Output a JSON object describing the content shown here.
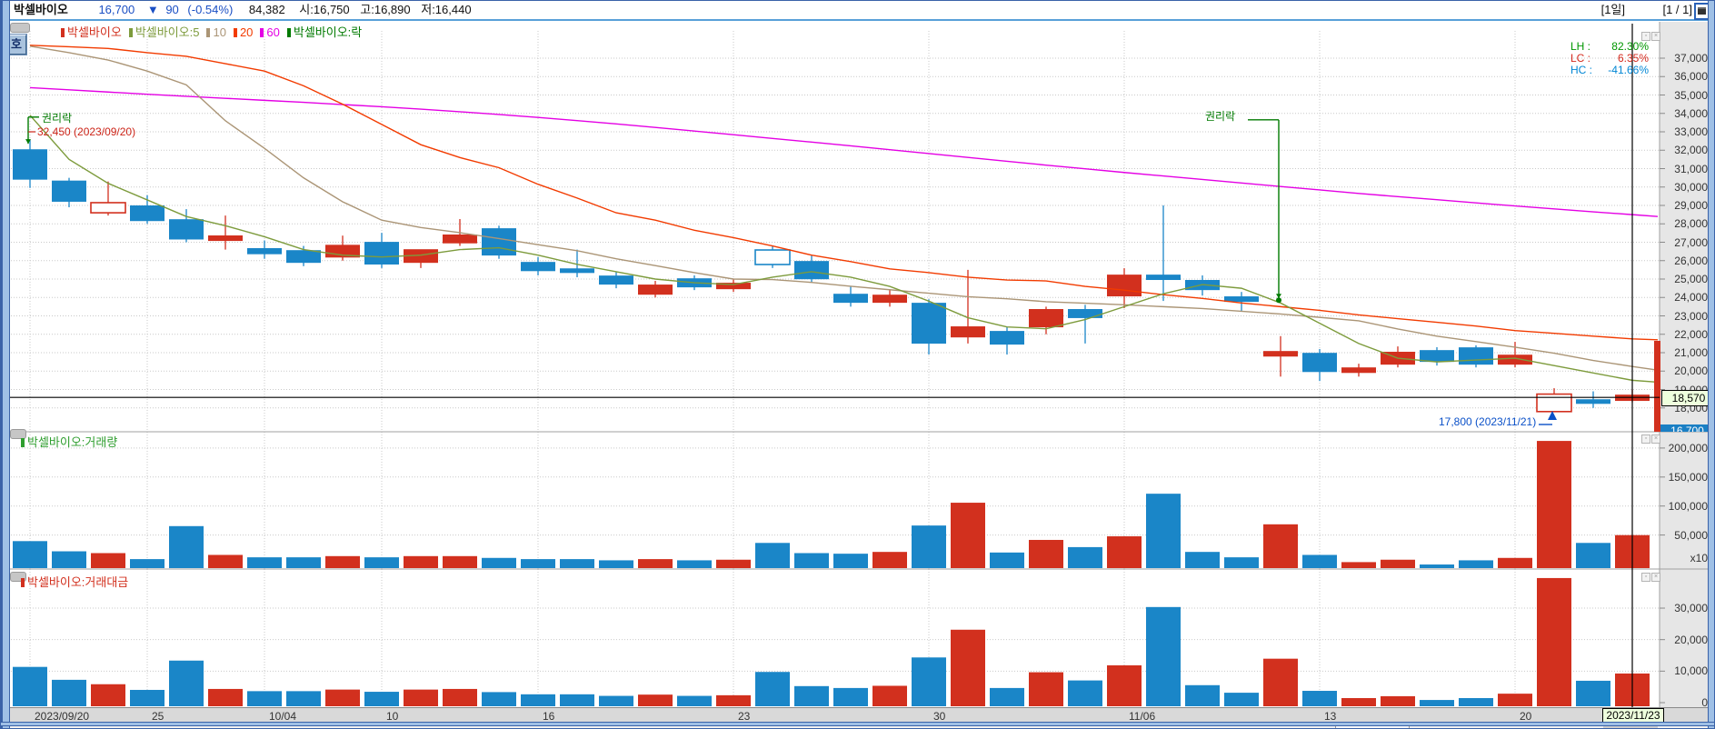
{
  "info_bar": {
    "name": "박셀바이오",
    "price": "16,700",
    "arrow": "▼",
    "change": "90",
    "change_pct": "(-0.54%)",
    "volume": "84,382",
    "open": "시:16,750",
    "high": "고:16,890",
    "low": "저:16,440",
    "period": "[1일]",
    "page": "[1 / 1]"
  },
  "price_panel": {
    "legend": [
      {
        "label": "박셀바이오",
        "color": "#d2301e"
      },
      {
        "label": "박셀바이오:5",
        "color": "#7d9b3c"
      },
      {
        "label": "10",
        "color": "#ab9576"
      },
      {
        "label": "20",
        "color": "#f23b00"
      },
      {
        "label": "60",
        "color": "#e400e4"
      },
      {
        "label": "박셀바이오:락",
        "color": "#007a00"
      }
    ],
    "overlay_stats": [
      {
        "label": "LH",
        "value": "82.30%",
        "color": "#009600"
      },
      {
        "label": "LC",
        "value": "6.35%",
        "color": "#d42a1e"
      },
      {
        "label": "HC",
        "value": "-41.66%",
        "color": "#0086d4"
      }
    ],
    "annotation_rights1_title": "권리락",
    "annotation_rights1_value": "32,450 (2023/09/20)",
    "annotation_rights2_title": "권리락",
    "annotation_low": "17,800 (2023/11/21)",
    "crosshair_price": "18,570",
    "current_price": "16,700"
  },
  "volume_panel": {
    "legend": "박셀바이오:거래량",
    "legend_color": "#2f9e2f",
    "unit": "x10"
  },
  "money_panel": {
    "legend": "박셀바이오:거래대금",
    "legend_color": "#d2301e"
  },
  "date_axis_crosshair": "2023/11/23",
  "hoga_button": "호",
  "colors": {
    "up": "#d2301e",
    "down": "#1a86c8",
    "ma5": "#7d9b3c",
    "ma10": "#ab9576",
    "ma20": "#f23b00",
    "ma60": "#e400e4",
    "rights": "#007a00",
    "annotation_blue": "#0a50c8",
    "grid": "#c9c9c9"
  },
  "chart_data": {
    "type": "candlestick",
    "symbol": "박셀바이오",
    "interval": "1일",
    "dates": [
      "09/20",
      "09/21",
      "09/22",
      "09/25",
      "09/26",
      "09/27",
      "10/04",
      "10/05",
      "10/06",
      "10/10",
      "10/11",
      "10/12",
      "10/13",
      "10/16",
      "10/17",
      "10/18",
      "10/19",
      "10/20",
      "10/23",
      "10/24",
      "10/25",
      "10/26",
      "10/27",
      "10/30",
      "10/31",
      "11/01",
      "11/02",
      "11/03",
      "11/06",
      "11/07",
      "11/08",
      "11/09",
      "11/10",
      "11/13",
      "11/14",
      "11/15",
      "11/16",
      "11/17",
      "11/20",
      "11/21",
      "11/22",
      "11/23"
    ],
    "open": [
      32050,
      30350,
      28600,
      29000,
      28250,
      27070,
      26680,
      26570,
      26170,
      27020,
      25880,
      26940,
      27760,
      25930,
      25580,
      25190,
      24150,
      25040,
      24450,
      26580,
      25980,
      24200,
      23710,
      23710,
      21830,
      22180,
      22380,
      23370,
      24060,
      25240,
      24950,
      24060,
      20790,
      20990,
      19900,
      20350,
      21140,
      21290,
      20350,
      17800,
      18470,
      18380
    ],
    "high": [
      32550,
      30500,
      30300,
      29550,
      28800,
      28450,
      27100,
      26800,
      27360,
      27510,
      26200,
      28260,
      27900,
      26200,
      26600,
      25400,
      24900,
      25200,
      25000,
      26800,
      26300,
      24600,
      24400,
      23900,
      25500,
      22400,
      23500,
      23600,
      25590,
      29000,
      25200,
      24300,
      21900,
      21200,
      20400,
      21340,
      21300,
      21400,
      21590,
      19070,
      18900,
      19000
    ],
    "low": [
      29950,
      28900,
      28450,
      28000,
      27000,
      26600,
      26100,
      25700,
      26000,
      25600,
      25600,
      26800,
      26100,
      25200,
      25100,
      24500,
      24000,
      24400,
      24300,
      25600,
      24800,
      23500,
      23500,
      20900,
      21500,
      20900,
      22000,
      21500,
      23420,
      23810,
      24100,
      23220,
      19700,
      19460,
      19700,
      20200,
      20300,
      20200,
      20200,
      17800,
      18000,
      18300
    ],
    "close": [
      30400,
      29200,
      29150,
      28150,
      27150,
      27370,
      26350,
      25880,
      26860,
      25790,
      26620,
      27420,
      26280,
      25430,
      25330,
      24700,
      24700,
      24550,
      24800,
      25790,
      24990,
      23710,
      24150,
      21490,
      22430,
      21440,
      23370,
      22880,
      25240,
      24950,
      24400,
      23760,
      21090,
      19950,
      20200,
      21050,
      20500,
      20350,
      20890,
      18750,
      18220,
      18720
    ],
    "dir": [
      "d",
      "d",
      "u",
      "d",
      "d",
      "u",
      "d",
      "d",
      "u",
      "d",
      "u",
      "u",
      "d",
      "d",
      "d",
      "d",
      "u",
      "d",
      "u",
      "d",
      "d",
      "d",
      "u",
      "d",
      "u",
      "d",
      "u",
      "d",
      "u",
      "d",
      "d",
      "d",
      "u",
      "d",
      "u",
      "u",
      "d",
      "d",
      "u",
      "u",
      "d",
      "u"
    ],
    "style": [
      "f",
      "f",
      "h",
      "f",
      "f",
      "f",
      "f",
      "f",
      "f",
      "f",
      "f",
      "f",
      "f",
      "f",
      "f",
      "f",
      "f",
      "f",
      "f",
      "h",
      "f",
      "f",
      "f",
      "f",
      "f",
      "f",
      "f",
      "f",
      "f",
      "f",
      "f",
      "f",
      "f",
      "f",
      "f",
      "f",
      "f",
      "f",
      "f",
      "h",
      "f",
      "f"
    ],
    "volume": [
      45000,
      28000,
      25000,
      15000,
      70000,
      22000,
      18000,
      18000,
      20000,
      18000,
      20000,
      20000,
      17000,
      15000,
      15000,
      13000,
      15000,
      13000,
      14000,
      42000,
      25000,
      24000,
      27000,
      71000,
      109000,
      26000,
      47000,
      35000,
      53000,
      124000,
      27000,
      18000,
      73000,
      22000,
      10000,
      14000,
      6000,
      13000,
      17000,
      212000,
      42000,
      55000
    ],
    "money": [
      12500,
      8400,
      7000,
      5200,
      14500,
      5500,
      4800,
      4800,
      5300,
      4600,
      5300,
      5500,
      4500,
      3800,
      3800,
      3300,
      3700,
      3300,
      3500,
      10900,
      6400,
      5800,
      6500,
      15500,
      24300,
      5800,
      10800,
      8200,
      13000,
      31500,
      6700,
      4300,
      15100,
      4900,
      2600,
      3200,
      2000,
      2600,
      4000,
      40700,
      8100,
      10400
    ],
    "ma5": [
      33900,
      31500,
      30200,
      29300,
      28400,
      27900,
      27300,
      26600,
      26300,
      26200,
      26300,
      26600,
      26700,
      26300,
      25800,
      25400,
      25000,
      24800,
      24700,
      25100,
      25400,
      25100,
      24600,
      23800,
      22900,
      22400,
      22300,
      22800,
      23500,
      24200,
      24700,
      24500,
      23700,
      22600,
      21500,
      20700,
      20500,
      20600,
      20700,
      20300,
      19900,
      19500
    ],
    "ma5_end": 19400,
    "ma10": [
      37650,
      37300,
      36900,
      36300,
      35550,
      33600,
      32100,
      30500,
      29200,
      28200,
      27800,
      27520,
      27200,
      26870,
      26540,
      26100,
      25730,
      25350,
      25000,
      24970,
      24820,
      24610,
      24420,
      24230,
      24040,
      23930,
      23770,
      23690,
      23600,
      23500,
      23400,
      23250,
      23100,
      22920,
      22730,
      22290,
      21900,
      21600,
      21300,
      20970,
      20580,
      20250
    ],
    "ma10_end": 20050,
    "ma20": [
      37700,
      37620,
      37530,
      37300,
      37100,
      36700,
      36300,
      35500,
      34500,
      33400,
      32300,
      31600,
      31050,
      30150,
      29400,
      28600,
      28200,
      27650,
      27250,
      26800,
      26300,
      25950,
      25550,
      25350,
      25100,
      24950,
      24900,
      24600,
      24400,
      24150,
      23950,
      23700,
      23500,
      23300,
      23050,
      22850,
      22650,
      22450,
      22200,
      22050,
      21900,
      21750
    ],
    "ma20_end": 21700,
    "ma60": [
      35400,
      35280,
      35160,
      35040,
      34930,
      34820,
      34710,
      34600,
      34480,
      34360,
      34230,
      34090,
      33940,
      33780,
      33610,
      33430,
      33240,
      33040,
      32840,
      32640,
      32440,
      32240,
      32030,
      31820,
      31610,
      31400,
      31190,
      30990,
      30790,
      30600,
      30410,
      30220,
      30030,
      29840,
      29650,
      29480,
      29310,
      29140,
      28970,
      28810,
      28650,
      28500
    ],
    "ma60_end": 28400,
    "rights_events": [
      {
        "candle": 0,
        "from_price": 33800,
        "to_price": 32350
      },
      {
        "candle": 32,
        "from_price": 33650,
        "to_price": 23950
      }
    ],
    "price_axis_ticks": [
      "37,000",
      "36,000",
      "35,000",
      "34,000",
      "33,000",
      "32,000",
      "31,000",
      "30,000",
      "29,000",
      "28,000",
      "27,000",
      "26,000",
      "25,000",
      "24,000",
      "23,000",
      "22,000",
      "21,000",
      "20,000",
      "19,000",
      "18,000"
    ],
    "price_axis_values": [
      37000,
      36000,
      35000,
      34000,
      33000,
      32000,
      31000,
      30000,
      29000,
      28000,
      27000,
      26000,
      25000,
      24000,
      23000,
      22000,
      21000,
      20000,
      19000,
      18000
    ],
    "volume_axis_ticks": [
      {
        "label": "200,000",
        "v": 200000
      },
      {
        "label": "150,000",
        "v": 150000
      },
      {
        "label": "100,000",
        "v": 100000
      },
      {
        "label": "50,000",
        "v": 50000
      }
    ],
    "money_axis_ticks": [
      {
        "label": "30,000",
        "v": 30000
      },
      {
        "label": "20,000",
        "v": 20000
      },
      {
        "label": "10,000",
        "v": 10000
      },
      {
        "label": "0",
        "v": 0
      }
    ],
    "date_ticks": [
      {
        "i": 0,
        "label": "2023/09/20"
      },
      {
        "i": 3,
        "label": "25"
      },
      {
        "i": 6,
        "label": "10/04"
      },
      {
        "i": 9,
        "label": "10"
      },
      {
        "i": 13,
        "label": "16"
      },
      {
        "i": 18,
        "label": "23"
      },
      {
        "i": 23,
        "label": "30"
      },
      {
        "i": 28,
        "label": "11/06"
      },
      {
        "i": 33,
        "label": "13"
      },
      {
        "i": 38,
        "label": "20"
      }
    ],
    "crosshair": {
      "candle": 41,
      "price": 18570,
      "price_label": "18,570",
      "date_label": "2023/11/23"
    }
  }
}
